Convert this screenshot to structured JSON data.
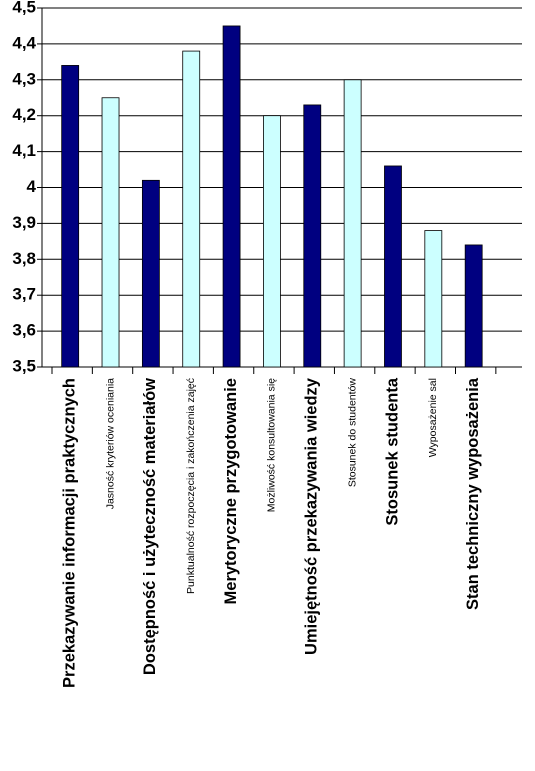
{
  "chart_data": {
    "type": "bar",
    "categories": [
      "Przekazywanie informacji praktycznych",
      "Jasność kryteriów oceniania",
      "Dostępność i użyteczność materiałów",
      "Punktualność rozpoczęcia i zakończenia zajęć",
      "Merytoryczne przygotowanie",
      "Możliwość konsultowania się",
      "Umiejętność przekazywania wiedzy",
      "Stosunek  do studentów",
      "Stosunek studenta",
      "Wyposażenie sal",
      "Stan techniczny  wyposażenia"
    ],
    "values": [
      4.34,
      4.25,
      4.02,
      4.38,
      4.45,
      4.2,
      4.23,
      4.3,
      4.06,
      3.88,
      3.84
    ],
    "colors": [
      "#000080",
      "#ccffff",
      "#000080",
      "#ccffff",
      "#000080",
      "#ccffff",
      "#000080",
      "#ccffff",
      "#000080",
      "#ccffff",
      "#000080"
    ],
    "ylim": [
      3.5,
      4.5
    ],
    "yticks": [
      {
        "value": 3.5,
        "label": "3,5"
      },
      {
        "value": 3.6,
        "label": "3,6"
      },
      {
        "value": 3.7,
        "label": "3,7"
      },
      {
        "value": 3.8,
        "label": "3,8"
      },
      {
        "value": 3.9,
        "label": "3,9"
      },
      4,
      {
        "value": 4.1,
        "label": "4,1"
      },
      {
        "value": 4.2,
        "label": "4,2"
      },
      {
        "value": 4.3,
        "label": "4,3"
      },
      {
        "value": 4.4,
        "label": "4,4"
      },
      {
        "value": 4.5,
        "label": "4,5"
      }
    ],
    "grid": true
  }
}
